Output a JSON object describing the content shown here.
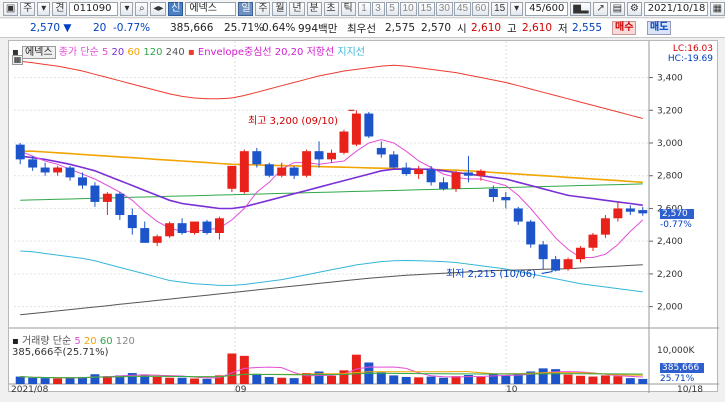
{
  "toolbar": {
    "code": "011090",
    "name": "에넥스",
    "type_badge": "신",
    "periods": [
      "일",
      "주",
      "월",
      "년",
      "분",
      "초",
      "틱"
    ],
    "minutes": [
      "1",
      "3",
      "5",
      "10",
      "15",
      "30",
      "45",
      "60"
    ],
    "minute_sel": "15",
    "counter": "45/600",
    "date": "2021/10/18",
    "mode1": "주",
    "mode2": "견"
  },
  "info": {
    "price": "2,570",
    "change": "20",
    "rate": "-0.77%",
    "volume": "385,666",
    "vol_rate": "25.71%",
    "turnover": "0.64%",
    "amount": "994백만",
    "best_ask_label": "최우선",
    "best_ask": "2,575",
    "best_bid": "2,570",
    "open_label": "시",
    "open": "2,610",
    "high_label": "고",
    "high": "2,610",
    "low_label": "저",
    "low": "2,555",
    "buy": "매수",
    "sell": "매도"
  },
  "price_legend": {
    "name": "에넥스",
    "ma_label": "종가 단순",
    "ma": [
      "5",
      "20",
      "60",
      "120",
      "240"
    ],
    "envelope": "Envelope중심선 20,20",
    "resist": "저항선",
    "support": "지지선"
  },
  "vol_legend": {
    "name": "거래량 단순",
    "ma": [
      "5",
      "20",
      "60",
      "120"
    ],
    "value": "385,666주(25.71%)"
  },
  "right_top": {
    "lc": "LC:16.03",
    "hc": "HC:-19.69"
  },
  "y_ticks": [
    "3,400",
    "3,200",
    "3,000",
    "2,800",
    "2,600",
    "2,400",
    "2,200",
    "2,000"
  ],
  "vol_tick": "10,000K",
  "price_box": {
    "price": "2,570",
    "rate": "-0.77%"
  },
  "vol_box": {
    "vol": "385,666",
    "rate": "25.71%"
  },
  "annotations": {
    "high": "최고 3,200 (09/10)",
    "low": "최저 2,215 (10/06)"
  },
  "x_ticks": [
    "2021/08",
    "09",
    "10",
    "10/18"
  ],
  "chart_data": {
    "type": "candlestick",
    "ylim": [
      1900,
      3550
    ],
    "candles": [
      [
        2990,
        3000,
        2870,
        2900
      ],
      [
        2900,
        2920,
        2830,
        2850
      ],
      [
        2850,
        2880,
        2800,
        2820
      ],
      [
        2820,
        2860,
        2800,
        2850
      ],
      [
        2850,
        2860,
        2770,
        2790
      ],
      [
        2790,
        2820,
        2720,
        2740
      ],
      [
        2740,
        2760,
        2610,
        2640
      ],
      [
        2640,
        2700,
        2560,
        2690
      ],
      [
        2690,
        2700,
        2530,
        2560
      ],
      [
        2560,
        2600,
        2440,
        2480
      ],
      [
        2480,
        2520,
        2390,
        2390
      ],
      [
        2390,
        2440,
        2370,
        2430
      ],
      [
        2430,
        2520,
        2420,
        2510
      ],
      [
        2510,
        2540,
        2440,
        2450
      ],
      [
        2450,
        2520,
        2440,
        2520
      ],
      [
        2520,
        2530,
        2440,
        2450
      ],
      [
        2450,
        2550,
        2410,
        2540
      ],
      [
        2720,
        2860,
        2700,
        2860
      ],
      [
        2700,
        2960,
        2690,
        2950
      ],
      [
        2950,
        2970,
        2850,
        2870
      ],
      [
        2870,
        2880,
        2790,
        2800
      ],
      [
        2800,
        2880,
        2790,
        2850
      ],
      [
        2850,
        2860,
        2780,
        2800
      ],
      [
        2800,
        2960,
        2790,
        2950
      ],
      [
        2950,
        3010,
        2850,
        2900
      ],
      [
        2900,
        2960,
        2880,
        2940
      ],
      [
        2940,
        3080,
        2930,
        3070
      ],
      [
        2990,
        3200,
        2980,
        3180
      ],
      [
        3180,
        3190,
        3030,
        3040
      ],
      [
        2970,
        3010,
        2910,
        2930
      ],
      [
        2930,
        2950,
        2840,
        2850
      ],
      [
        2850,
        2880,
        2800,
        2810
      ],
      [
        2810,
        2860,
        2780,
        2840
      ],
      [
        2840,
        2860,
        2740,
        2760
      ],
      [
        2760,
        2790,
        2710,
        2720
      ],
      [
        2720,
        2830,
        2700,
        2820
      ],
      [
        2820,
        2920,
        2760,
        2800
      ],
      [
        2800,
        2840,
        2770,
        2830
      ],
      [
        2720,
        2740,
        2640,
        2670
      ],
      [
        2670,
        2700,
        2600,
        2650
      ],
      [
        2600,
        2610,
        2500,
        2520
      ],
      [
        2520,
        2530,
        2360,
        2380
      ],
      [
        2380,
        2400,
        2230,
        2290
      ],
      [
        2290,
        2310,
        2215,
        2220
      ],
      [
        2230,
        2300,
        2220,
        2290
      ],
      [
        2290,
        2370,
        2270,
        2360
      ],
      [
        2360,
        2450,
        2340,
        2440
      ],
      [
        2440,
        2560,
        2420,
        2540
      ],
      [
        2540,
        2640,
        2520,
        2600
      ],
      [
        2600,
        2620,
        2560,
        2580
      ],
      [
        2590,
        2610,
        2555,
        2570
      ]
    ],
    "volume": [
      1.9,
      1.6,
      1.5,
      1.4,
      1.7,
      1.8,
      2.5,
      2.0,
      2.2,
      2.8,
      2.4,
      1.8,
      1.6,
      1.6,
      1.4,
      1.3,
      2.2,
      7.8,
      7.2,
      2.6,
      1.8,
      1.6,
      1.5,
      2.8,
      3.2,
      2.1,
      3.5,
      7.5,
      5.5,
      3.0,
      2.2,
      1.8,
      1.7,
      1.9,
      1.6,
      2.0,
      2.3,
      1.8,
      2.6,
      2.2,
      2.5,
      3.2,
      4.0,
      3.8,
      2.4,
      2.1,
      1.9,
      2.2,
      2.0,
      1.5,
      1.3
    ],
    "ma5": [
      2950,
      2920,
      2890,
      2870,
      2840,
      2810,
      2780,
      2740,
      2700,
      2650,
      2580,
      2520,
      2480,
      2460,
      2460,
      2470,
      2480,
      2530,
      2600,
      2700,
      2760,
      2840,
      2880,
      2880,
      2870,
      2880,
      2890,
      2950,
      3000,
      3020,
      3000,
      2950,
      2890,
      2850,
      2810,
      2790,
      2780,
      2780,
      2760,
      2740,
      2680,
      2600,
      2510,
      2420,
      2350,
      2300,
      2300,
      2320,
      2380,
      2460,
      2530
    ],
    "ma20": [
      2920,
      2910,
      2900,
      2885,
      2870,
      2850,
      2830,
      2800,
      2770,
      2740,
      2710,
      2680,
      2650,
      2630,
      2620,
      2610,
      2600,
      2600,
      2610,
      2630,
      2650,
      2670,
      2690,
      2710,
      2730,
      2750,
      2770,
      2790,
      2810,
      2830,
      2840,
      2840,
      2840,
      2840,
      2830,
      2820,
      2810,
      2800,
      2790,
      2780,
      2760,
      2740,
      2720,
      2700,
      2680,
      2670,
      2660,
      2650,
      2640,
      2630,
      2620
    ],
    "ma60": [
      2950,
      2950,
      2945,
      2940,
      2935,
      2930,
      2925,
      2920,
      2915,
      2910,
      2905,
      2900,
      2895,
      2890,
      2885,
      2880,
      2875,
      2870,
      2868,
      2866,
      2864,
      2862,
      2860,
      2858,
      2856,
      2854,
      2852,
      2850,
      2848,
      2846,
      2844,
      2842,
      2840,
      2838,
      2836,
      2834,
      2830,
      2825,
      2820,
      2815,
      2810,
      2805,
      2800,
      2795,
      2790,
      2785,
      2780,
      2775,
      2770,
      2765,
      2760
    ],
    "ma120": [
      2650,
      2652,
      2654,
      2656,
      2658,
      2660,
      2662,
      2664,
      2666,
      2668,
      2670,
      2672,
      2674,
      2676,
      2678,
      2680,
      2682,
      2684,
      2686,
      2688,
      2690,
      2692,
      2694,
      2696,
      2698,
      2700,
      2702,
      2704,
      2706,
      2708,
      2710,
      2712,
      2714,
      2716,
      2718,
      2720,
      2722,
      2724,
      2726,
      2728,
      2730,
      2732,
      2734,
      2736,
      2738,
      2740,
      2742,
      2744,
      2746,
      2748,
      2750
    ],
    "ma240": [
      1950,
      1958,
      1966,
      1974,
      1982,
      1990,
      1998,
      2006,
      2014,
      2022,
      2030,
      2038,
      2046,
      2054,
      2062,
      2070,
      2078,
      2086,
      2094,
      2102,
      2110,
      2118,
      2126,
      2134,
      2142,
      2150,
      2158,
      2166,
      2174,
      2180,
      2186,
      2192,
      2196,
      2200,
      2204,
      2208,
      2212,
      2216,
      2220,
      2222,
      2224,
      2226,
      2228,
      2230,
      2232,
      2236,
      2240,
      2244,
      2248,
      2252,
      2256
    ],
    "env_upper": [
      3500,
      3490,
      3480,
      3470,
      3455,
      3440,
      3420,
      3400,
      3380,
      3360,
      3340,
      3320,
      3300,
      3285,
      3275,
      3270,
      3270,
      3275,
      3290,
      3310,
      3330,
      3350,
      3370,
      3390,
      3410,
      3425,
      3440,
      3450,
      3460,
      3470,
      3475,
      3470,
      3460,
      3450,
      3440,
      3430,
      3415,
      3400,
      3385,
      3370,
      3350,
      3330,
      3310,
      3290,
      3270,
      3250,
      3230,
      3210,
      3190,
      3170,
      3150
    ],
    "env_lower": [
      2340,
      2335,
      2325,
      2315,
      2305,
      2295,
      2280,
      2260,
      2240,
      2220,
      2200,
      2180,
      2160,
      2150,
      2140,
      2135,
      2130,
      2130,
      2135,
      2145,
      2155,
      2165,
      2180,
      2195,
      2210,
      2225,
      2240,
      2255,
      2265,
      2275,
      2280,
      2282,
      2280,
      2278,
      2275,
      2270,
      2260,
      2250,
      2240,
      2230,
      2215,
      2200,
      2185,
      2170,
      2155,
      2140,
      2130,
      2120,
      2110,
      2100,
      2090
    ],
    "colors": {
      "up": "#e8221b",
      "down": "#1d54c9",
      "ma5": "#e44fd9",
      "ma20": "#7a2fd6",
      "ma60": "#f2a400",
      "ma120": "#2fa84a",
      "ma240": "#555555",
      "env_upper": "#ee3b2f",
      "env_lower": "#36b6d9"
    }
  }
}
